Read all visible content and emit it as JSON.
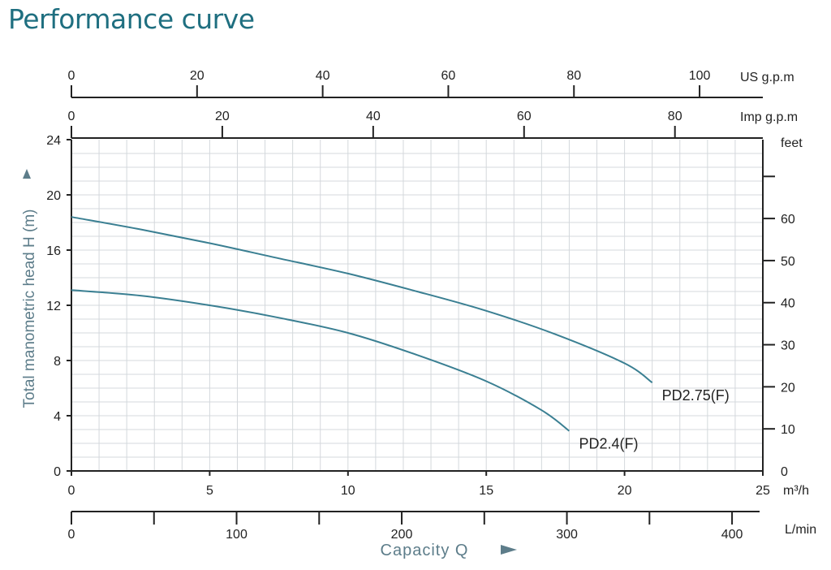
{
  "page": {
    "title": "Performance curve",
    "title_color": "#1f6f80"
  },
  "colors": {
    "axis": "#222222",
    "grid": "#d4d8dc",
    "curve": "#3a7f92",
    "ylabel": "#5d7d8a",
    "xlabel": "#5d7d8a",
    "text": "#222222"
  },
  "chart_data": {
    "type": "line",
    "x_primary": {
      "unit_label": "m³/h",
      "range": [
        0,
        25
      ],
      "ticks": [
        0,
        5,
        10,
        15,
        20,
        25
      ]
    },
    "x_lmin": {
      "unit_label": "L/min",
      "range": [
        0,
        416.67
      ],
      "ticks": [
        0,
        100,
        200,
        300,
        400
      ],
      "minor_ticks": [
        50,
        150,
        250,
        350
      ]
    },
    "x_usgpm": {
      "unit_label": "US g.p.m",
      "range": [
        0,
        110.07
      ],
      "ticks": [
        0,
        20,
        40,
        60,
        80,
        100
      ]
    },
    "x_impgpm": {
      "unit_label": "Imp g.p.m",
      "range": [
        0,
        91.65
      ],
      "ticks": [
        0,
        20,
        40,
        60,
        80
      ]
    },
    "y_primary": {
      "label": "Total manometric head H (m)",
      "range": [
        0,
        24
      ],
      "ticks": [
        0,
        4,
        8,
        12,
        16,
        20,
        24
      ]
    },
    "y_feet": {
      "unit_label": "feet",
      "range": [
        0,
        78.74
      ],
      "ticks": [
        0,
        10,
        20,
        30,
        40,
        50,
        60
      ]
    },
    "xlabel": "Capacity Q",
    "grid": true,
    "series": [
      {
        "name": "PD2.75(F)",
        "x": [
          0,
          2.5,
          5,
          7.5,
          10,
          12.5,
          15,
          17.5,
          20,
          21
        ],
        "y": [
          18.4,
          17.5,
          16.5,
          15.4,
          14.3,
          13.0,
          11.6,
          9.9,
          7.8,
          6.4
        ]
      },
      {
        "name": "PD2.4(F)",
        "x": [
          0,
          2.5,
          5,
          7.5,
          10,
          12.5,
          15,
          17,
          18
        ],
        "y": [
          13.1,
          12.7,
          12.0,
          11.1,
          10.0,
          8.4,
          6.5,
          4.4,
          2.9
        ]
      }
    ]
  }
}
